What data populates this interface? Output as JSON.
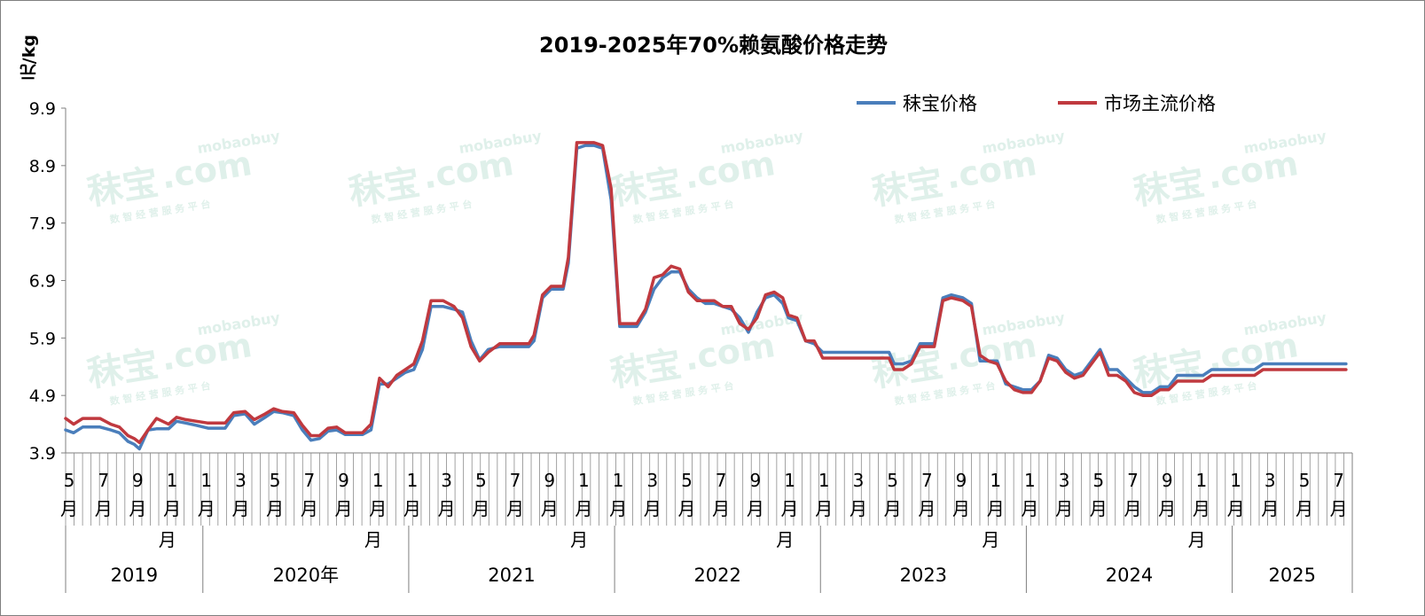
{
  "chart_data": {
    "type": "line",
    "title": "2019-2025年70%赖氨酸价格走势",
    "ylabel": "元/kg",
    "ylim": [
      3.9,
      9.9
    ],
    "yticks": [
      "9.9",
      "8.9",
      "7.9",
      "6.9",
      "5.9",
      "4.9",
      "3.9"
    ],
    "x_start": "2019-05",
    "x_end": "2025-07",
    "month_tick_labels": [
      "5",
      "7",
      "9",
      "1",
      "1",
      "3",
      "5",
      "7",
      "9",
      "1",
      "1",
      "3",
      "5",
      "7",
      "9",
      "1",
      "1",
      "3",
      "5",
      "7",
      "9",
      "1",
      "1",
      "3",
      "5",
      "7",
      "9",
      "1",
      "1",
      "3",
      "5",
      "7",
      "9",
      "1",
      "1",
      "3",
      "5",
      "7"
    ],
    "month_suffix": "月",
    "years": [
      {
        "label": "2019",
        "yue": "月"
      },
      {
        "label": "2020年",
        "yue": "月"
      },
      {
        "label": "2021",
        "yue": "月"
      },
      {
        "label": "2022",
        "yue": "月"
      },
      {
        "label": "2023",
        "yue": "月"
      },
      {
        "label": "2024",
        "yue": "月"
      },
      {
        "label": "2025",
        "yue": ""
      }
    ],
    "legend_position": "top-right",
    "series": [
      {
        "name": "秣宝价格",
        "color": "#4a7ebb",
        "points": [
          [
            "2019-05-01",
            4.3
          ],
          [
            "2019-05-15",
            4.25
          ],
          [
            "2019-06-01",
            4.35
          ],
          [
            "2019-07-01",
            4.35
          ],
          [
            "2019-07-20",
            4.3
          ],
          [
            "2019-08-05",
            4.25
          ],
          [
            "2019-08-20",
            4.1
          ],
          [
            "2019-09-01",
            4.05
          ],
          [
            "2019-09-10",
            3.97
          ],
          [
            "2019-09-25",
            4.3
          ],
          [
            "2019-10-10",
            4.32
          ],
          [
            "2019-11-01",
            4.32
          ],
          [
            "2019-11-15",
            4.45
          ],
          [
            "2019-12-01",
            4.42
          ],
          [
            "2019-12-20",
            4.38
          ],
          [
            "2020-01-10",
            4.33
          ],
          [
            "2020-02-10",
            4.33
          ],
          [
            "2020-02-25",
            4.55
          ],
          [
            "2020-03-15",
            4.58
          ],
          [
            "2020-04-01",
            4.4
          ],
          [
            "2020-04-20",
            4.52
          ],
          [
            "2020-05-05",
            4.62
          ],
          [
            "2020-05-20",
            4.6
          ],
          [
            "2020-06-10",
            4.55
          ],
          [
            "2020-06-25",
            4.3
          ],
          [
            "2020-07-10",
            4.12
          ],
          [
            "2020-07-25",
            4.15
          ],
          [
            "2020-08-10",
            4.28
          ],
          [
            "2020-08-25",
            4.3
          ],
          [
            "2020-09-10",
            4.22
          ],
          [
            "2020-10-10",
            4.22
          ],
          [
            "2020-10-25",
            4.3
          ],
          [
            "2020-11-10",
            5.1
          ],
          [
            "2020-11-25",
            5.1
          ],
          [
            "2020-12-10",
            5.2
          ],
          [
            "2020-12-25",
            5.3
          ],
          [
            "2021-01-10",
            5.35
          ],
          [
            "2021-01-25",
            5.7
          ],
          [
            "2021-02-10",
            6.45
          ],
          [
            "2021-03-01",
            6.45
          ],
          [
            "2021-03-20",
            6.4
          ],
          [
            "2021-04-05",
            6.35
          ],
          [
            "2021-04-20",
            5.85
          ],
          [
            "2021-05-05",
            5.52
          ],
          [
            "2021-05-20",
            5.7
          ],
          [
            "2021-06-10",
            5.75
          ],
          [
            "2021-07-01",
            5.75
          ],
          [
            "2021-08-01",
            5.75
          ],
          [
            "2021-08-10",
            5.85
          ],
          [
            "2021-08-25",
            6.6
          ],
          [
            "2021-09-10",
            6.75
          ],
          [
            "2021-10-01",
            6.75
          ],
          [
            "2021-10-10",
            7.2
          ],
          [
            "2021-10-25",
            9.2
          ],
          [
            "2021-11-10",
            9.25
          ],
          [
            "2021-11-25",
            9.25
          ],
          [
            "2021-12-10",
            9.2
          ],
          [
            "2021-12-25",
            8.3
          ],
          [
            "2022-01-10",
            6.1
          ],
          [
            "2022-01-25",
            6.1
          ],
          [
            "2022-02-10",
            6.1
          ],
          [
            "2022-02-25",
            6.35
          ],
          [
            "2022-03-10",
            6.75
          ],
          [
            "2022-03-25",
            6.95
          ],
          [
            "2022-04-10",
            7.05
          ],
          [
            "2022-04-25",
            7.05
          ],
          [
            "2022-05-10",
            6.75
          ],
          [
            "2022-05-25",
            6.6
          ],
          [
            "2022-06-10",
            6.5
          ],
          [
            "2022-06-25",
            6.5
          ],
          [
            "2022-07-10",
            6.45
          ],
          [
            "2022-07-25",
            6.4
          ],
          [
            "2022-08-10",
            6.25
          ],
          [
            "2022-08-25",
            6.0
          ],
          [
            "2022-09-10",
            6.35
          ],
          [
            "2022-09-25",
            6.6
          ],
          [
            "2022-10-10",
            6.65
          ],
          [
            "2022-10-25",
            6.5
          ],
          [
            "2022-11-05",
            6.25
          ],
          [
            "2022-11-20",
            6.2
          ],
          [
            "2022-12-05",
            5.85
          ],
          [
            "2022-12-20",
            5.8
          ],
          [
            "2023-01-05",
            5.65
          ],
          [
            "2023-02-01",
            5.65
          ],
          [
            "2023-03-01",
            5.65
          ],
          [
            "2023-04-01",
            5.65
          ],
          [
            "2023-05-01",
            5.65
          ],
          [
            "2023-05-10",
            5.45
          ],
          [
            "2023-05-25",
            5.45
          ],
          [
            "2023-06-10",
            5.5
          ],
          [
            "2023-06-25",
            5.8
          ],
          [
            "2023-07-20",
            5.8
          ],
          [
            "2023-08-05",
            6.6
          ],
          [
            "2023-08-20",
            6.65
          ],
          [
            "2023-09-10",
            6.6
          ],
          [
            "2023-09-25",
            6.5
          ],
          [
            "2023-10-10",
            5.5
          ],
          [
            "2023-10-25",
            5.5
          ],
          [
            "2023-11-10",
            5.5
          ],
          [
            "2023-11-25",
            5.1
          ],
          [
            "2023-12-10",
            5.05
          ],
          [
            "2023-12-25",
            5.0
          ],
          [
            "2024-01-10",
            5.0
          ],
          [
            "2024-01-25",
            5.15
          ],
          [
            "2024-02-10",
            5.6
          ],
          [
            "2024-02-25",
            5.55
          ],
          [
            "2024-03-10",
            5.35
          ],
          [
            "2024-03-25",
            5.25
          ],
          [
            "2024-04-10",
            5.3
          ],
          [
            "2024-04-25",
            5.5
          ],
          [
            "2024-05-10",
            5.7
          ],
          [
            "2024-05-25",
            5.35
          ],
          [
            "2024-06-10",
            5.35
          ],
          [
            "2024-06-25",
            5.2
          ],
          [
            "2024-07-10",
            5.05
          ],
          [
            "2024-07-25",
            4.95
          ],
          [
            "2024-08-10",
            4.95
          ],
          [
            "2024-08-25",
            5.05
          ],
          [
            "2024-09-10",
            5.05
          ],
          [
            "2024-09-25",
            5.25
          ],
          [
            "2024-10-10",
            5.25
          ],
          [
            "2024-11-10",
            5.25
          ],
          [
            "2024-11-25",
            5.35
          ],
          [
            "2024-12-10",
            5.35
          ],
          [
            "2025-01-10",
            5.35
          ],
          [
            "2025-02-10",
            5.35
          ],
          [
            "2025-02-25",
            5.45
          ],
          [
            "2025-03-15",
            5.45
          ],
          [
            "2025-05-01",
            5.45
          ],
          [
            "2025-07-20",
            5.45
          ]
        ]
      },
      {
        "name": "市场主流价格",
        "color": "#c0393f",
        "points": [
          [
            "2019-05-01",
            4.5
          ],
          [
            "2019-05-15",
            4.4
          ],
          [
            "2019-06-01",
            4.5
          ],
          [
            "2019-07-01",
            4.5
          ],
          [
            "2019-07-20",
            4.4
          ],
          [
            "2019-08-05",
            4.35
          ],
          [
            "2019-08-20",
            4.2
          ],
          [
            "2019-09-01",
            4.15
          ],
          [
            "2019-09-10",
            4.08
          ],
          [
            "2019-09-25",
            4.3
          ],
          [
            "2019-10-10",
            4.5
          ],
          [
            "2019-11-01",
            4.4
          ],
          [
            "2019-11-15",
            4.52
          ],
          [
            "2019-12-01",
            4.48
          ],
          [
            "2019-12-20",
            4.45
          ],
          [
            "2020-01-10",
            4.42
          ],
          [
            "2020-02-10",
            4.42
          ],
          [
            "2020-02-25",
            4.6
          ],
          [
            "2020-03-15",
            4.62
          ],
          [
            "2020-04-01",
            4.48
          ],
          [
            "2020-04-20",
            4.58
          ],
          [
            "2020-05-05",
            4.67
          ],
          [
            "2020-05-20",
            4.62
          ],
          [
            "2020-06-10",
            4.6
          ],
          [
            "2020-06-25",
            4.38
          ],
          [
            "2020-07-10",
            4.2
          ],
          [
            "2020-07-25",
            4.2
          ],
          [
            "2020-08-10",
            4.33
          ],
          [
            "2020-08-25",
            4.35
          ],
          [
            "2020-09-10",
            4.25
          ],
          [
            "2020-10-10",
            4.25
          ],
          [
            "2020-10-25",
            4.4
          ],
          [
            "2020-11-10",
            5.2
          ],
          [
            "2020-11-25",
            5.05
          ],
          [
            "2020-12-10",
            5.25
          ],
          [
            "2020-12-25",
            5.35
          ],
          [
            "2021-01-10",
            5.45
          ],
          [
            "2021-01-25",
            5.85
          ],
          [
            "2021-02-10",
            6.55
          ],
          [
            "2021-03-01",
            6.55
          ],
          [
            "2021-03-20",
            6.45
          ],
          [
            "2021-04-05",
            6.25
          ],
          [
            "2021-04-20",
            5.75
          ],
          [
            "2021-05-05",
            5.5
          ],
          [
            "2021-05-20",
            5.65
          ],
          [
            "2021-06-10",
            5.8
          ],
          [
            "2021-07-01",
            5.8
          ],
          [
            "2021-08-01",
            5.8
          ],
          [
            "2021-08-10",
            5.95
          ],
          [
            "2021-08-25",
            6.65
          ],
          [
            "2021-09-10",
            6.8
          ],
          [
            "2021-10-01",
            6.8
          ],
          [
            "2021-10-10",
            7.3
          ],
          [
            "2021-10-25",
            9.3
          ],
          [
            "2021-11-10",
            9.3
          ],
          [
            "2021-11-25",
            9.3
          ],
          [
            "2021-12-10",
            9.25
          ],
          [
            "2021-12-25",
            8.5
          ],
          [
            "2022-01-10",
            6.15
          ],
          [
            "2022-01-25",
            6.15
          ],
          [
            "2022-02-10",
            6.15
          ],
          [
            "2022-02-25",
            6.4
          ],
          [
            "2022-03-10",
            6.95
          ],
          [
            "2022-03-25",
            7.0
          ],
          [
            "2022-04-10",
            7.15
          ],
          [
            "2022-04-25",
            7.1
          ],
          [
            "2022-05-10",
            6.7
          ],
          [
            "2022-05-25",
            6.55
          ],
          [
            "2022-06-10",
            6.55
          ],
          [
            "2022-06-25",
            6.55
          ],
          [
            "2022-07-10",
            6.45
          ],
          [
            "2022-07-25",
            6.45
          ],
          [
            "2022-08-10",
            6.15
          ],
          [
            "2022-08-25",
            6.05
          ],
          [
            "2022-09-10",
            6.25
          ],
          [
            "2022-09-25",
            6.65
          ],
          [
            "2022-10-10",
            6.7
          ],
          [
            "2022-10-25",
            6.6
          ],
          [
            "2022-11-05",
            6.3
          ],
          [
            "2022-11-20",
            6.25
          ],
          [
            "2022-12-05",
            5.85
          ],
          [
            "2022-12-20",
            5.85
          ],
          [
            "2023-01-05",
            5.55
          ],
          [
            "2023-02-01",
            5.55
          ],
          [
            "2023-03-01",
            5.55
          ],
          [
            "2023-04-01",
            5.55
          ],
          [
            "2023-05-01",
            5.55
          ],
          [
            "2023-05-10",
            5.35
          ],
          [
            "2023-05-25",
            5.35
          ],
          [
            "2023-06-10",
            5.45
          ],
          [
            "2023-06-25",
            5.75
          ],
          [
            "2023-07-20",
            5.75
          ],
          [
            "2023-08-05",
            6.55
          ],
          [
            "2023-08-20",
            6.6
          ],
          [
            "2023-09-10",
            6.55
          ],
          [
            "2023-09-25",
            6.45
          ],
          [
            "2023-10-10",
            5.6
          ],
          [
            "2023-10-25",
            5.5
          ],
          [
            "2023-11-10",
            5.45
          ],
          [
            "2023-11-25",
            5.15
          ],
          [
            "2023-12-10",
            5.0
          ],
          [
            "2023-12-25",
            4.95
          ],
          [
            "2024-01-10",
            4.95
          ],
          [
            "2024-01-25",
            5.15
          ],
          [
            "2024-02-10",
            5.55
          ],
          [
            "2024-02-25",
            5.5
          ],
          [
            "2024-03-10",
            5.3
          ],
          [
            "2024-03-25",
            5.2
          ],
          [
            "2024-04-10",
            5.25
          ],
          [
            "2024-04-25",
            5.45
          ],
          [
            "2024-05-10",
            5.65
          ],
          [
            "2024-05-25",
            5.25
          ],
          [
            "2024-06-10",
            5.25
          ],
          [
            "2024-06-25",
            5.15
          ],
          [
            "2024-07-10",
            4.95
          ],
          [
            "2024-07-25",
            4.9
          ],
          [
            "2024-08-10",
            4.9
          ],
          [
            "2024-08-25",
            5.0
          ],
          [
            "2024-09-10",
            5.0
          ],
          [
            "2024-09-25",
            5.15
          ],
          [
            "2024-10-10",
            5.15
          ],
          [
            "2024-11-10",
            5.15
          ],
          [
            "2024-11-25",
            5.25
          ],
          [
            "2024-12-10",
            5.25
          ],
          [
            "2025-01-10",
            5.25
          ],
          [
            "2025-02-10",
            5.25
          ],
          [
            "2025-02-25",
            5.35
          ],
          [
            "2025-03-15",
            5.35
          ],
          [
            "2025-05-01",
            5.35
          ],
          [
            "2025-07-20",
            5.35
          ]
        ]
      }
    ]
  },
  "watermark": {
    "brand": "秣宝",
    "domain": ".com",
    "latin": "mobaobuy",
    "tagline": "数 智 经 营 服 务 平 台"
  }
}
